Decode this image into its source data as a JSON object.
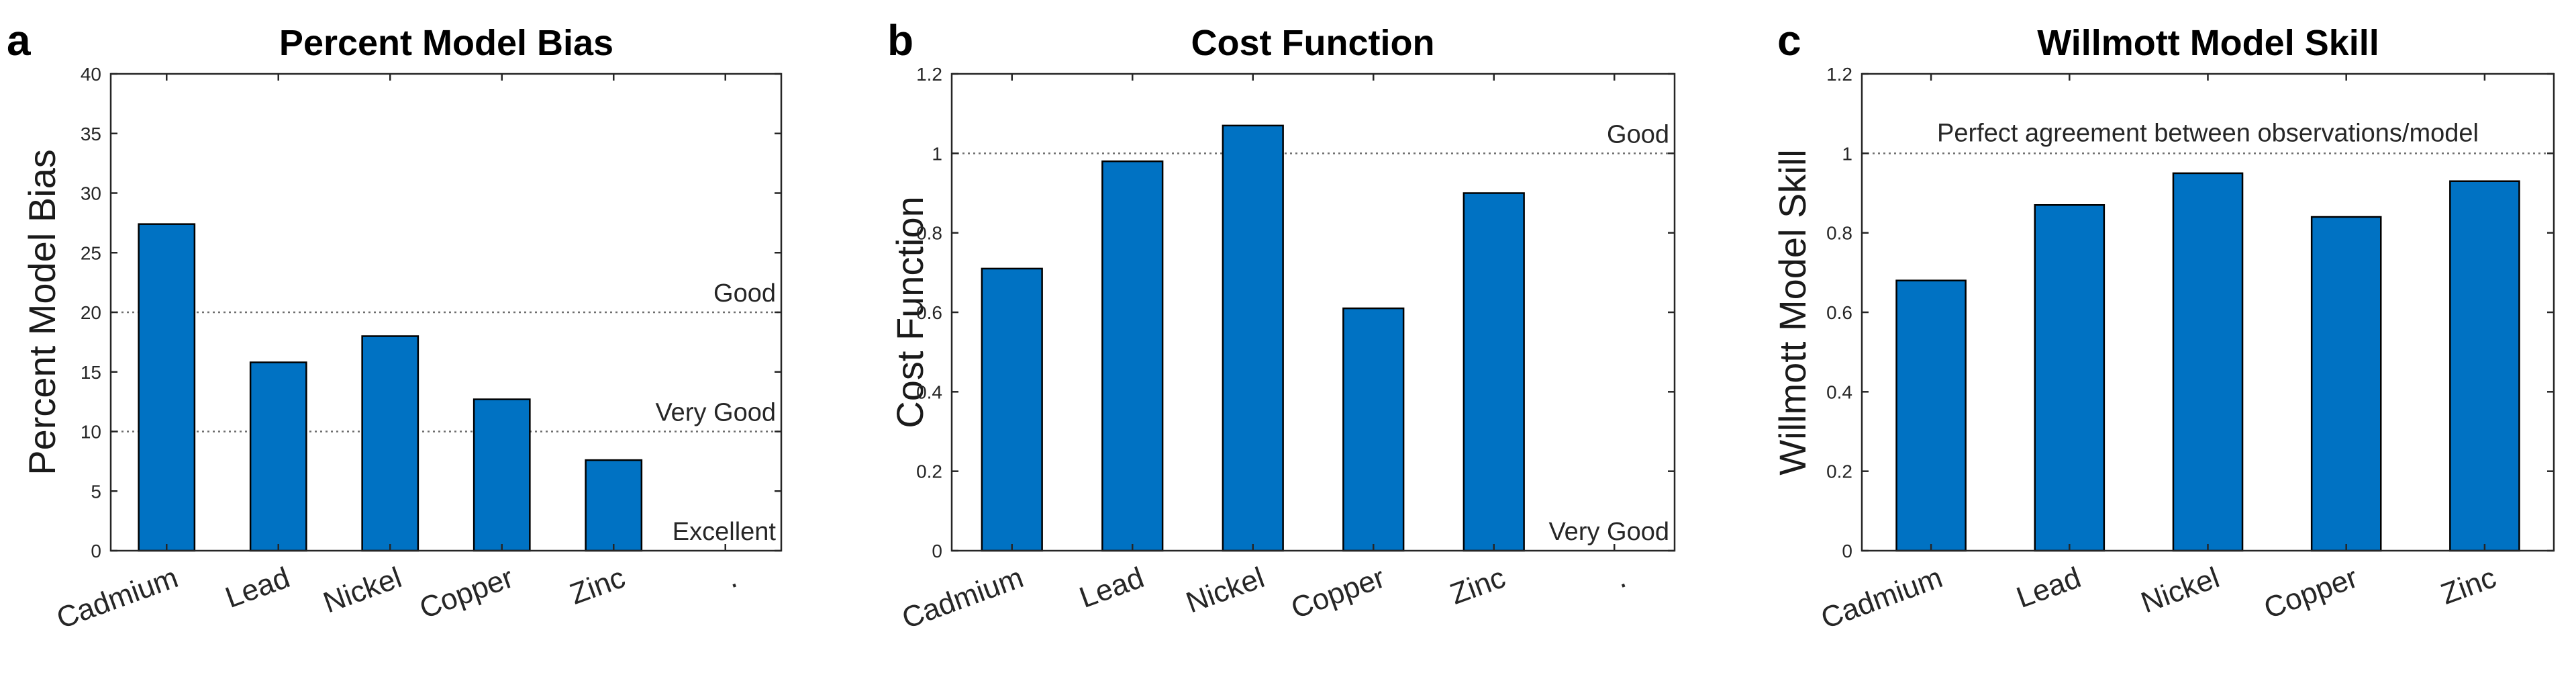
{
  "colors": {
    "bar": "#0072c3"
  },
  "chart_data": [
    {
      "type": "bar",
      "panel": "a",
      "title": "Percent Model Bias",
      "xlabel": "",
      "ylabel": "Percent Model Bias",
      "categories": [
        "Cadmium",
        "Lead",
        "Nickel",
        "Copper",
        "Zinc",
        "."
      ],
      "values": [
        27.4,
        15.8,
        18.0,
        12.7,
        7.6,
        null
      ],
      "ylim": [
        0,
        40
      ],
      "yticks": [
        "0",
        "5",
        "10",
        "15",
        "20",
        "25",
        "30",
        "35",
        "40"
      ],
      "yticks_values": [
        0,
        5,
        10,
        15,
        20,
        25,
        30,
        35,
        40
      ],
      "reference_lines": [
        20,
        10
      ],
      "annotations": [
        {
          "text": "Good",
          "y": 20
        },
        {
          "text": "Very Good",
          "y": 10
        },
        {
          "text": "Excellent",
          "y": 0
        }
      ],
      "grid": false
    },
    {
      "type": "bar",
      "panel": "b",
      "title": "Cost Function",
      "xlabel": "",
      "ylabel": "Cost Function",
      "categories": [
        "Cadmium",
        "Lead",
        "Nickel",
        "Copper",
        "Zinc",
        "."
      ],
      "values": [
        0.71,
        0.98,
        1.07,
        0.61,
        0.9,
        null
      ],
      "ylim": [
        0,
        1.2
      ],
      "yticks": [
        "0",
        "0.2",
        "0.4",
        "0.6",
        "0.8",
        "1",
        "1.2"
      ],
      "yticks_values": [
        0,
        0.2,
        0.4,
        0.6,
        0.8,
        1.0,
        1.2
      ],
      "reference_lines": [
        1
      ],
      "annotations": [
        {
          "text": "Good",
          "y": 1
        },
        {
          "text": "Very Good",
          "y": 0
        }
      ],
      "grid": false
    },
    {
      "type": "bar",
      "panel": "c",
      "title": "Willmott Model Skill",
      "xlabel": "",
      "ylabel": "Willmott Model Skill",
      "categories": [
        "Cadmium",
        "Lead",
        "Nickel",
        "Copper",
        "Zinc"
      ],
      "values": [
        0.68,
        0.87,
        0.95,
        0.84,
        0.93
      ],
      "ylim": [
        0,
        1.2
      ],
      "yticks": [
        "0",
        "0.2",
        "0.4",
        "0.6",
        "0.8",
        "1",
        "1.2"
      ],
      "yticks_values": [
        0,
        0.2,
        0.4,
        0.6,
        0.8,
        1.0,
        1.2
      ],
      "reference_lines": [
        1
      ],
      "annotations": [
        {
          "text": "Perfect agreement between observations/model",
          "y": 1
        }
      ],
      "grid": false
    }
  ]
}
